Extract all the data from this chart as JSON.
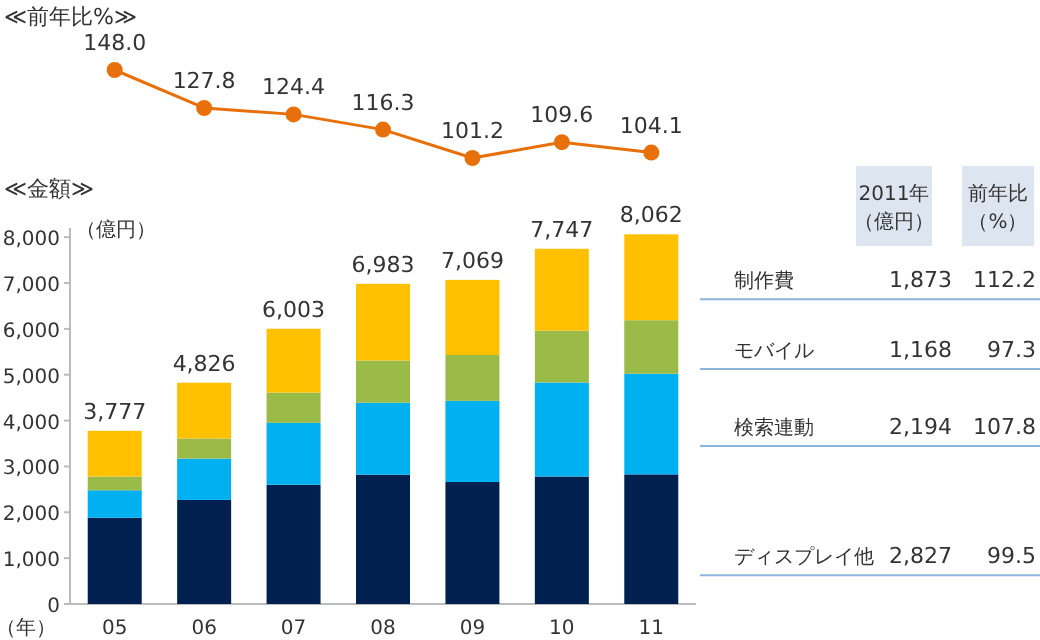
{
  "chart_data": [
    {
      "type": "line",
      "title": "≪前年比%≫",
      "categories": [
        null,
        null,
        null,
        null,
        null,
        null,
        null
      ],
      "series": [
        {
          "color": "#e8700a",
          "values": [
            148.0,
            127.8,
            124.4,
            116.3,
            101.2,
            109.6,
            104.1
          ],
          "value_labels": [
            "148.0",
            "127.8",
            "124.4",
            "116.3",
            "101.2",
            "109.6",
            "104.1"
          ]
        }
      ],
      "marker": "circle"
    },
    {
      "type": "bar",
      "stacked": true,
      "title": "≪金額≫",
      "ylabel": "（億円）",
      "xlabel": "（年）",
      "categories": [
        "05",
        "06",
        "07",
        "08",
        "09",
        "10",
        "11"
      ],
      "series": [
        {
          "name": "ディスプレイ他",
          "color": "#002050",
          "values": [
            1880,
            2270,
            2600,
            2820,
            2660,
            2780,
            2827
          ]
        },
        {
          "name": "検索連動",
          "color": "#00b0f0",
          "values": [
            600,
            900,
            1350,
            1570,
            1770,
            2050,
            2194
          ]
        },
        {
          "name": "モバイル",
          "color": "#9bbb48",
          "values": [
            300,
            440,
            660,
            920,
            1000,
            1130,
            1168
          ]
        },
        {
          "name": "制作費",
          "color": "#ffc000",
          "values": [
            997,
            1216,
            1393,
            1673,
            1639,
            1787,
            1873
          ]
        }
      ],
      "totals": [
        "3,777",
        "4,826",
        "6,003",
        "6,983",
        "7,069",
        "7,747",
        "8,062"
      ],
      "ylim": [
        0,
        8200
      ],
      "yticks": [
        0,
        {
          "value": 1000,
          "label": "1,000"
        },
        {
          "value": 2000,
          "label": "2,000"
        },
        {
          "value": 3000,
          "label": "3,000"
        },
        {
          "value": 4000,
          "label": "4,000"
        },
        {
          "value": 5000,
          "label": "5,000"
        },
        {
          "value": 6000,
          "label": "6,000"
        },
        {
          "value": 7000,
          "label": "7,000"
        },
        {
          "value": 8000,
          "label": "8,000"
        }
      ],
      "annotations": [
        "2011年",
        "（億円）",
        "前年比",
        "（%）",
        "2,827",
        "99.5",
        "2,194",
        "107.8",
        "1,168",
        "97.3",
        "1,873",
        "112.2"
      ],
      "legend": "right"
    }
  ]
}
